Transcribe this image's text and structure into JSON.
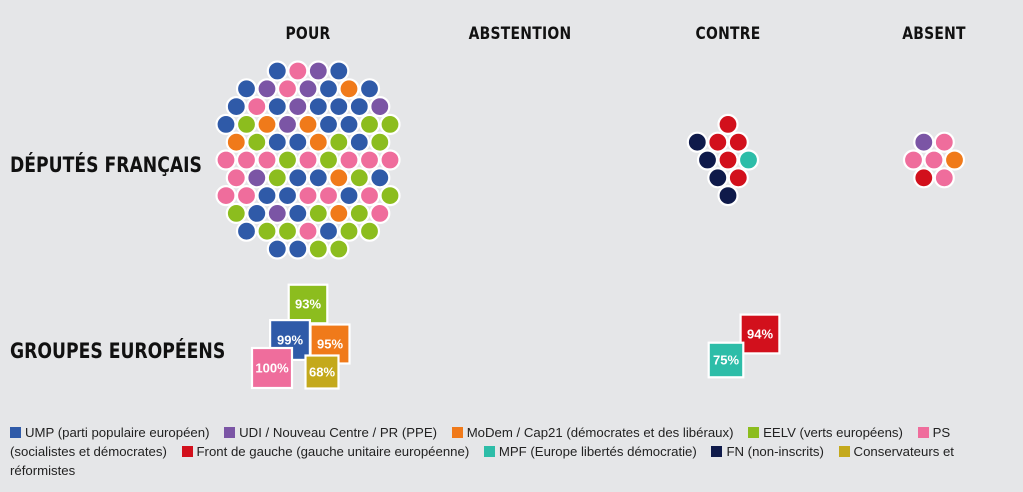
{
  "chart_data": {
    "type": "bubble-grid",
    "columns": [
      "POUR",
      "ABSTENTION",
      "CONTRE",
      "ABSENT"
    ],
    "rows": [
      "DÉPUTÉS FRANÇAIS",
      "GROUPES EUROPÉENS"
    ],
    "groups": [
      {
        "key": "ump",
        "label": "UMP (parti populaire européen)",
        "color": "#2f5aa8"
      },
      {
        "key": "udi",
        "label": "UDI / Nouveau Centre / PR (PPE)",
        "color": "#7b55a5"
      },
      {
        "key": "modem",
        "label": "MoDem / Cap21 (démocrates et des libéraux)",
        "color": "#f07a1a"
      },
      {
        "key": "eelv",
        "label": "EELV (verts européens)",
        "color": "#8cbd1e"
      },
      {
        "key": "ps",
        "label": "PS (socialistes et démocrates)",
        "color": "#ef6d9c"
      },
      {
        "key": "fdg",
        "label": "Front de gauche (gauche unitaire européenne)",
        "color": "#d2101c"
      },
      {
        "key": "mpf",
        "label": "MPF (Europe libertés démocratie)",
        "color": "#2dbda8"
      },
      {
        "key": "fn",
        "label": "FN (non-inscrits)",
        "color": "#0f1a4a"
      },
      {
        "key": "cons",
        "label": "Conservateurs et réformistes",
        "color": "#c4a91c"
      }
    ],
    "deputes": {
      "POUR": {
        "ump": 28,
        "udi": 8,
        "modem": 7,
        "eelv": 20,
        "ps": 18
      },
      "ABSTENTION": {},
      "CONTRE": {
        "fdg": 5,
        "fn": 4,
        "mpf": 1
      },
      "ABSENT": {
        "fdg": 1,
        "udi": 1,
        "modem": 1,
        "ps": 4
      }
    },
    "groupes_europeens": {
      "POUR": [
        {
          "group": "eelv",
          "value": 93,
          "label": "93%"
        },
        {
          "group": "ump",
          "value": 99,
          "label": "99%"
        },
        {
          "group": "modem",
          "value": 95,
          "label": "95%"
        },
        {
          "group": "ps",
          "value": 100,
          "label": "100%"
        },
        {
          "group": "cons",
          "value": 68,
          "label": "68%"
        }
      ],
      "ABSTENTION": [],
      "CONTRE": [
        {
          "group": "fdg",
          "value": 94,
          "label": "94%"
        },
        {
          "group": "mpf",
          "value": 75,
          "label": "75%"
        }
      ],
      "ABSENT": []
    }
  },
  "legend": {
    "items": [
      {
        "key": "ump",
        "label": "UMP (parti populaire européen)",
        "color": "#2f5aa8"
      },
      {
        "key": "udi",
        "label": "UDI / Nouveau Centre / PR (PPE)",
        "color": "#7b55a5"
      },
      {
        "key": "modem",
        "label": "MoDem / Cap21 (démocrates et des libéraux)",
        "color": "#f07a1a"
      },
      {
        "key": "eelv",
        "label": "EELV (verts européens)",
        "color": "#8cbd1e"
      },
      {
        "key": "ps",
        "label": "PS (socialistes et démocrates)",
        "color": "#ef6d9c"
      },
      {
        "key": "fdg",
        "label": "Front de gauche (gauche unitaire européenne)",
        "color": "#d2101c"
      },
      {
        "key": "mpf",
        "label": "MPF (Europe libertés démocratie)",
        "color": "#2dbda8"
      },
      {
        "key": "fn",
        "label": "FN (non-inscrits)",
        "color": "#0f1a4a"
      },
      {
        "key": "cons",
        "label": "Conservateurs et réformistes",
        "color": "#c4a91c"
      }
    ]
  }
}
